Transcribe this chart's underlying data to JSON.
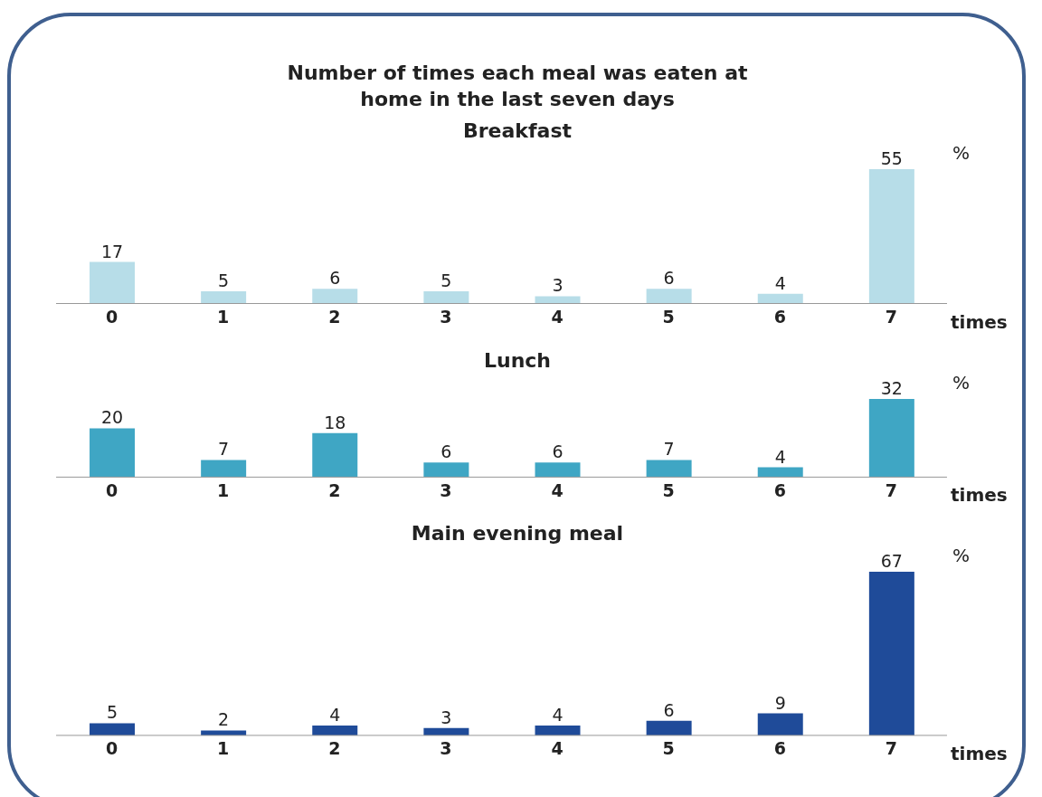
{
  "chart_data": [
    {
      "type": "bar",
      "title": "Number of times each meal was eaten at home in the last seven days",
      "subtitle": "Breakfast",
      "xlabel": "times",
      "ylabel": "%",
      "categories": [
        "0",
        "1",
        "2",
        "3",
        "4",
        "5",
        "6",
        "7"
      ],
      "values": [
        17,
        5,
        6,
        5,
        3,
        6,
        4,
        55
      ],
      "color": "#b7dde8",
      "data_labels": true
    },
    {
      "type": "bar",
      "subtitle": "Lunch",
      "xlabel": "times",
      "ylabel": "%",
      "categories": [
        "0",
        "1",
        "2",
        "3",
        "4",
        "5",
        "6",
        "7"
      ],
      "values": [
        20,
        7,
        18,
        6,
        6,
        7,
        4,
        32
      ],
      "color": "#3fa6c4",
      "data_labels": true
    },
    {
      "type": "bar",
      "subtitle": "Main evening meal",
      "xlabel": "times",
      "ylabel": "%",
      "categories": [
        "0",
        "1",
        "2",
        "3",
        "4",
        "5",
        "6",
        "7"
      ],
      "values": [
        5,
        2,
        4,
        3,
        4,
        6,
        9,
        67
      ],
      "color": "#1f4b99",
      "data_labels": true
    }
  ]
}
